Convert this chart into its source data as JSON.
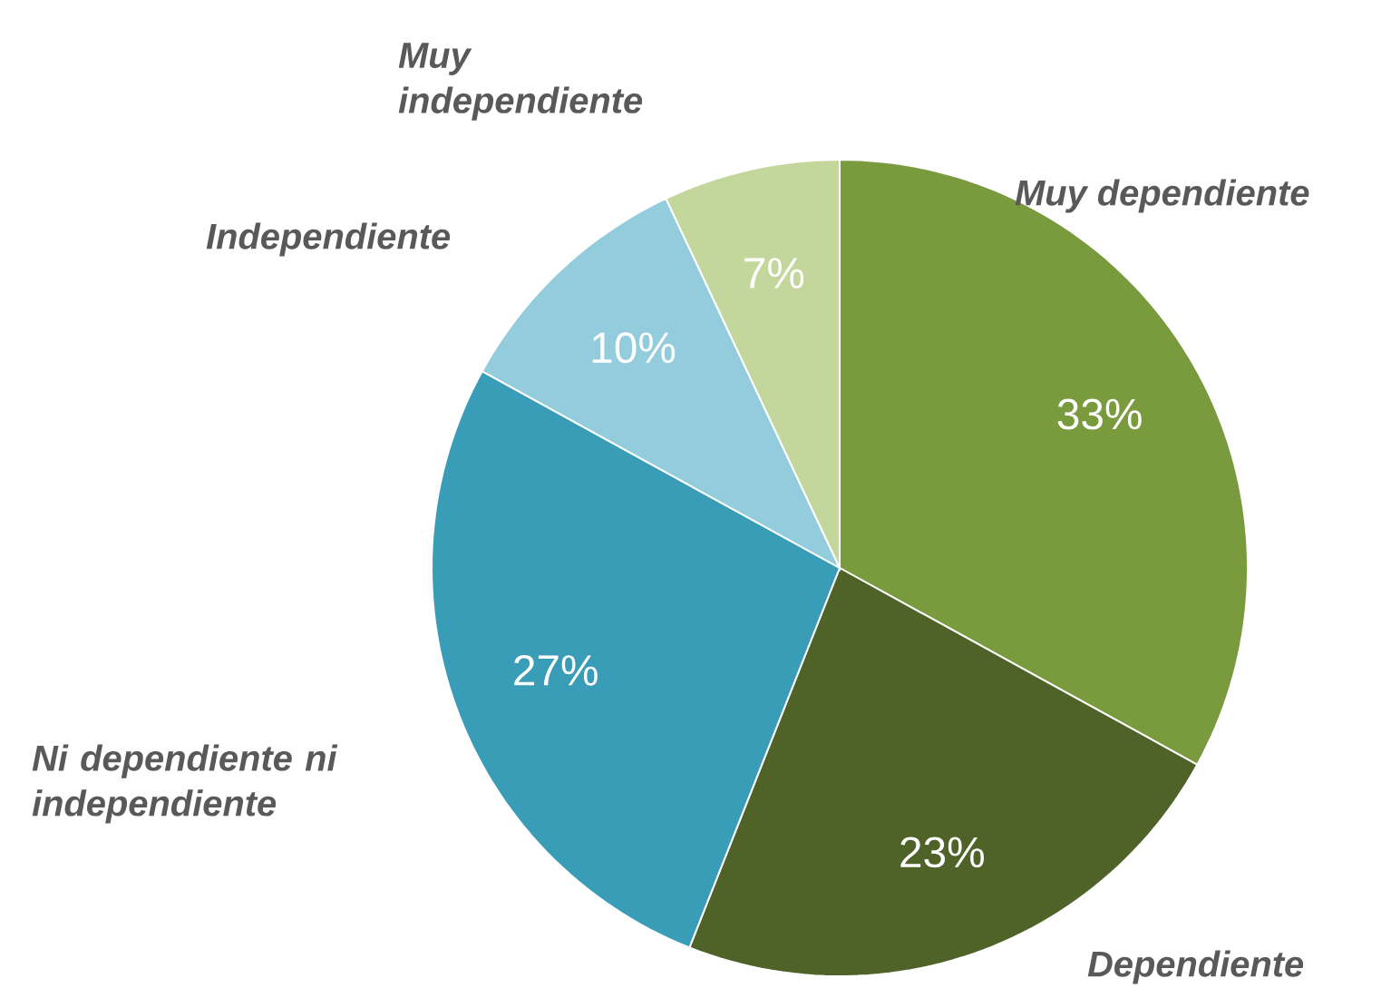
{
  "chart_data": {
    "type": "pie",
    "categories": [
      "Muy dependiente",
      "Dependiente",
      "Ni dependiente ni independiente",
      "Independiente",
      "Muy independiente"
    ],
    "values": [
      33,
      23,
      27,
      10,
      7
    ],
    "colors": [
      "#7a9a3e",
      "#4f6228",
      "#3a9db8",
      "#93cddd",
      "#c3d69b"
    ],
    "value_labels": [
      "33%",
      "23%",
      "27%",
      "10%",
      "7%"
    ]
  }
}
